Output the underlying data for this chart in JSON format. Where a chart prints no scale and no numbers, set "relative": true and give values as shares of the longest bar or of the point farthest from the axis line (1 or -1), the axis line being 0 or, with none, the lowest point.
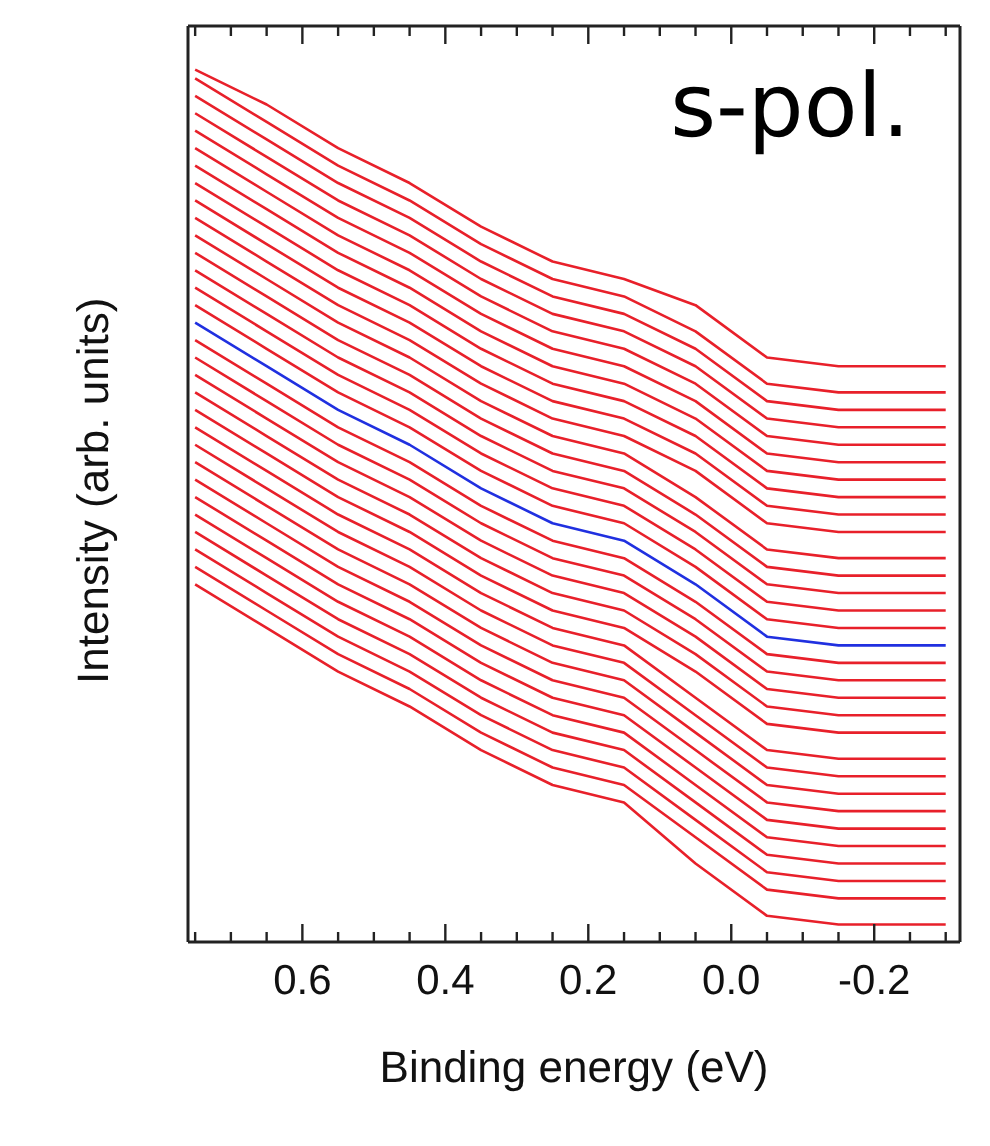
{
  "chart_data": {
    "type": "line",
    "relative": true,
    "xlabel": "Binding energy (eV)",
    "ylabel": "Intensity (arb. units)",
    "annotations": [
      "s-pol."
    ],
    "xlim": [
      0.76,
      -0.32
    ],
    "xticks": [
      {
        "value": 0.75,
        "label": null
      },
      {
        "value": 0.7,
        "label": null
      },
      {
        "value": 0.65,
        "label": null
      },
      {
        "value": 0.6,
        "label": "0.6"
      },
      {
        "value": 0.55,
        "label": null
      },
      {
        "value": 0.5,
        "label": null
      },
      {
        "value": 0.45,
        "label": null
      },
      {
        "value": 0.4,
        "label": "0.4"
      },
      {
        "value": 0.35,
        "label": null
      },
      {
        "value": 0.3,
        "label": null
      },
      {
        "value": 0.25,
        "label": null
      },
      {
        "value": 0.2,
        "label": "0.2"
      },
      {
        "value": 0.15,
        "label": null
      },
      {
        "value": 0.1,
        "label": null
      },
      {
        "value": 0.05,
        "label": null
      },
      {
        "value": 0,
        "label": "0.0"
      },
      {
        "value": -0.05,
        "label": null
      },
      {
        "value": -0.1,
        "label": null
      },
      {
        "value": -0.15,
        "label": null
      },
      {
        "value": -0.2,
        "label": "-0.2"
      },
      {
        "value": -0.25,
        "label": null
      },
      {
        "value": -0.3,
        "label": null
      }
    ],
    "x": [
      0.75,
      0.65,
      0.55,
      0.45,
      0.35,
      0.25,
      0.15,
      0.05,
      -0.05,
      -0.15,
      -0.25,
      -0.3
    ],
    "marker": "none",
    "line_style": "solid",
    "series": [
      {
        "color": "#e8202a",
        "values": [
          1.0,
          0.96,
          0.91,
          0.87,
          0.82,
          0.78,
          0.76,
          0.73,
          0.67,
          0.66,
          0.66,
          0.66
        ]
      },
      {
        "color": "#e8202a",
        "values": [
          0.99,
          0.94,
          0.89,
          0.85,
          0.8,
          0.76,
          0.74,
          0.7,
          0.64,
          0.63,
          0.63,
          0.63
        ]
      },
      {
        "color": "#e8202a",
        "values": [
          0.97,
          0.92,
          0.87,
          0.83,
          0.78,
          0.74,
          0.72,
          0.68,
          0.62,
          0.61,
          0.61,
          0.61
        ]
      },
      {
        "color": "#e8202a",
        "values": [
          0.95,
          0.9,
          0.85,
          0.81,
          0.76,
          0.72,
          0.7,
          0.66,
          0.6,
          0.59,
          0.59,
          0.59
        ]
      },
      {
        "color": "#e8202a",
        "values": [
          0.93,
          0.88,
          0.83,
          0.79,
          0.74,
          0.7,
          0.68,
          0.64,
          0.58,
          0.57,
          0.57,
          0.57
        ]
      },
      {
        "color": "#e8202a",
        "values": [
          0.91,
          0.86,
          0.81,
          0.77,
          0.72,
          0.68,
          0.66,
          0.62,
          0.56,
          0.55,
          0.55,
          0.55
        ]
      },
      {
        "color": "#e8202a",
        "values": [
          0.89,
          0.84,
          0.79,
          0.75,
          0.7,
          0.66,
          0.64,
          0.6,
          0.54,
          0.53,
          0.53,
          0.53
        ]
      },
      {
        "color": "#e8202a",
        "values": [
          0.87,
          0.82,
          0.77,
          0.73,
          0.68,
          0.64,
          0.62,
          0.58,
          0.52,
          0.51,
          0.51,
          0.51
        ]
      },
      {
        "color": "#e8202a",
        "values": [
          0.85,
          0.8,
          0.75,
          0.71,
          0.66,
          0.62,
          0.6,
          0.56,
          0.5,
          0.49,
          0.49,
          0.49
        ]
      },
      {
        "color": "#e8202a",
        "values": [
          0.83,
          0.78,
          0.73,
          0.69,
          0.64,
          0.6,
          0.58,
          0.54,
          0.48,
          0.47,
          0.47,
          0.47
        ]
      },
      {
        "color": "#e8202a",
        "values": [
          0.81,
          0.76,
          0.71,
          0.67,
          0.62,
          0.58,
          0.56,
          0.51,
          0.45,
          0.44,
          0.44,
          0.44
        ]
      },
      {
        "color": "#e8202a",
        "values": [
          0.79,
          0.74,
          0.69,
          0.65,
          0.6,
          0.56,
          0.54,
          0.49,
          0.43,
          0.42,
          0.42,
          0.42
        ]
      },
      {
        "color": "#e8202a",
        "values": [
          0.77,
          0.72,
          0.67,
          0.63,
          0.58,
          0.54,
          0.52,
          0.47,
          0.41,
          0.4,
          0.4,
          0.4
        ]
      },
      {
        "color": "#e8202a",
        "values": [
          0.75,
          0.7,
          0.65,
          0.61,
          0.56,
          0.52,
          0.5,
          0.45,
          0.39,
          0.38,
          0.38,
          0.38
        ]
      },
      {
        "color": "#e8202a",
        "values": [
          0.73,
          0.68,
          0.63,
          0.59,
          0.54,
          0.5,
          0.48,
          0.43,
          0.37,
          0.36,
          0.36,
          0.36
        ]
      },
      {
        "color": "#2030e0",
        "values": [
          0.71,
          0.66,
          0.61,
          0.57,
          0.52,
          0.48,
          0.46,
          0.41,
          0.35,
          0.34,
          0.34,
          0.34
        ]
      },
      {
        "color": "#e8202a",
        "values": [
          0.69,
          0.64,
          0.59,
          0.55,
          0.5,
          0.46,
          0.44,
          0.39,
          0.33,
          0.32,
          0.32,
          0.32
        ]
      },
      {
        "color": "#e8202a",
        "values": [
          0.67,
          0.62,
          0.57,
          0.53,
          0.48,
          0.44,
          0.42,
          0.37,
          0.31,
          0.3,
          0.3,
          0.3
        ]
      },
      {
        "color": "#e8202a",
        "values": [
          0.65,
          0.6,
          0.55,
          0.51,
          0.46,
          0.42,
          0.4,
          0.35,
          0.29,
          0.28,
          0.28,
          0.28
        ]
      },
      {
        "color": "#e8202a",
        "values": [
          0.63,
          0.58,
          0.53,
          0.49,
          0.44,
          0.4,
          0.38,
          0.33,
          0.27,
          0.26,
          0.26,
          0.26
        ]
      },
      {
        "color": "#e8202a",
        "values": [
          0.61,
          0.56,
          0.51,
          0.47,
          0.42,
          0.38,
          0.36,
          0.31,
          0.25,
          0.24,
          0.24,
          0.24
        ]
      },
      {
        "color": "#e8202a",
        "values": [
          0.59,
          0.54,
          0.49,
          0.45,
          0.4,
          0.36,
          0.34,
          0.28,
          0.22,
          0.21,
          0.21,
          0.21
        ]
      },
      {
        "color": "#e8202a",
        "values": [
          0.57,
          0.52,
          0.47,
          0.43,
          0.38,
          0.34,
          0.32,
          0.26,
          0.2,
          0.19,
          0.19,
          0.19
        ]
      },
      {
        "color": "#e8202a",
        "values": [
          0.55,
          0.5,
          0.45,
          0.41,
          0.36,
          0.32,
          0.3,
          0.24,
          0.18,
          0.17,
          0.17,
          0.17
        ]
      },
      {
        "color": "#e8202a",
        "values": [
          0.53,
          0.48,
          0.43,
          0.39,
          0.34,
          0.3,
          0.28,
          0.22,
          0.16,
          0.15,
          0.15,
          0.15
        ]
      },
      {
        "color": "#e8202a",
        "values": [
          0.51,
          0.46,
          0.41,
          0.37,
          0.32,
          0.28,
          0.26,
          0.2,
          0.14,
          0.13,
          0.13,
          0.13
        ]
      },
      {
        "color": "#e8202a",
        "values": [
          0.49,
          0.44,
          0.39,
          0.35,
          0.3,
          0.26,
          0.24,
          0.18,
          0.12,
          0.11,
          0.11,
          0.11
        ]
      },
      {
        "color": "#e8202a",
        "values": [
          0.47,
          0.42,
          0.37,
          0.33,
          0.28,
          0.24,
          0.22,
          0.16,
          0.1,
          0.09,
          0.09,
          0.09
        ]
      },
      {
        "color": "#e8202a",
        "values": [
          0.45,
          0.4,
          0.35,
          0.31,
          0.26,
          0.22,
          0.2,
          0.14,
          0.08,
          0.07,
          0.07,
          0.07
        ]
      },
      {
        "color": "#e8202a",
        "values": [
          0.43,
          0.38,
          0.33,
          0.29,
          0.24,
          0.2,
          0.18,
          0.12,
          0.06,
          0.05,
          0.05,
          0.05
        ]
      },
      {
        "color": "#e8202a",
        "values": [
          0.41,
          0.36,
          0.31,
          0.27,
          0.22,
          0.18,
          0.16,
          0.09,
          0.03,
          0.02,
          0.02,
          0.02
        ]
      }
    ]
  }
}
